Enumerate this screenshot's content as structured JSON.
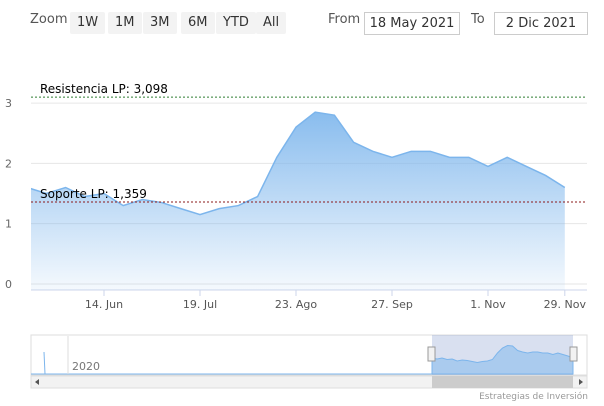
{
  "toolbar": {
    "zoom_label": "Zoom",
    "buttons": [
      "1W",
      "1M",
      "3M",
      "6M",
      "YTD",
      "All"
    ],
    "from_label": "From",
    "from": "18 May 2021",
    "to_label": "To",
    "to": "2 Dic 2021"
  },
  "navigator": {
    "year_label": "2020"
  },
  "credits": "Estrategias de Inversión",
  "chart_data": {
    "type": "area",
    "color": "#7cb5ec",
    "x": [
      "17 May",
      "24 May",
      "31 May",
      "7 Jun",
      "14 Jun",
      "21 Jun",
      "28 Jun",
      "5 Jul",
      "12 Jul",
      "19 Jul",
      "26 Jul",
      "2 Aug",
      "9 Aug",
      "16 Aug",
      "23 Aug",
      "30 Aug",
      "6 Sep",
      "13 Sep",
      "20 Sep",
      "27 Sep",
      "4 Oct",
      "11 Oct",
      "18 Oct",
      "25 Oct",
      "1 Nov",
      "8 Nov",
      "15 Nov",
      "22 Nov",
      "29 Nov"
    ],
    "series": [
      {
        "values": [
          1.6,
          1.5,
          1.6,
          1.45,
          1.5,
          1.3,
          1.4,
          1.35,
          1.25,
          1.15,
          1.25,
          1.3,
          1.45,
          2.1,
          2.6,
          2.85,
          2.8,
          2.35,
          2.2,
          2.1,
          2.2,
          2.2,
          2.1,
          2.1,
          1.95,
          2.1,
          1.95,
          1.8,
          1.6
        ]
      }
    ],
    "xticks": [
      {
        "value": "14 Jun",
        "label": "14. Jun"
      },
      {
        "value": "19 Jul",
        "label": "19. Jul"
      },
      {
        "value": "23 Aug",
        "label": "23. Ago"
      },
      {
        "value": "27 Sep",
        "label": "27. Sep"
      },
      {
        "value": "1 Nov",
        "label": "1. Nov"
      },
      {
        "value": "29 Nov",
        "label": "29. Nov"
      }
    ],
    "ylim": [
      -0.1,
      3.25
    ],
    "yticks": [
      0,
      1,
      2,
      3
    ],
    "grid": true,
    "plot_lines": [
      {
        "value": 3.098,
        "label": "Resistencia LP: 3,098",
        "color": "#2e7d32"
      },
      {
        "value": 1.359,
        "label": "Soporte LP: 1,359",
        "color": "#8b1a1a"
      }
    ]
  }
}
